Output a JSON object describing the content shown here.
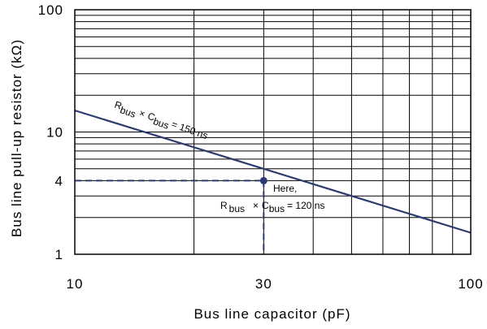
{
  "chart_data": {
    "type": "line",
    "title": "",
    "xlabel": "Bus line capacitor (pF)",
    "ylabel": "Bus line pull-up resistor (kΩ)",
    "x_scale": "log",
    "y_scale": "log",
    "xlim": [
      10,
      100
    ],
    "ylim": [
      1,
      100
    ],
    "x_ticks": [
      {
        "value": 10,
        "label": "10"
      },
      {
        "value": 30,
        "label": "30"
      },
      {
        "value": 100,
        "label": "100"
      }
    ],
    "y_ticks": [
      {
        "value": 1,
        "label": "1"
      },
      {
        "value": 4,
        "label": "4"
      },
      {
        "value": 10,
        "label": "10"
      },
      {
        "value": 100,
        "label": "100"
      }
    ],
    "grid": true,
    "line_color": "#2e3b6e",
    "series": [
      {
        "points": [
          [
            10,
            15
          ],
          [
            100,
            1.5
          ]
        ]
      }
    ],
    "series_label": {
      "r": "R",
      "r_sub": "bus",
      "c": "C",
      "c_sub": "bus",
      "rest": "= 150 ns",
      "times": "×"
    },
    "highlight_point": {
      "x": 30,
      "y": 4
    },
    "annotation": {
      "line1": "Here,",
      "r": "R",
      "r_sub": "bus",
      "times": "×",
      "c": "C",
      "c_sub": "bus",
      "rest": "= 120 ns"
    }
  }
}
